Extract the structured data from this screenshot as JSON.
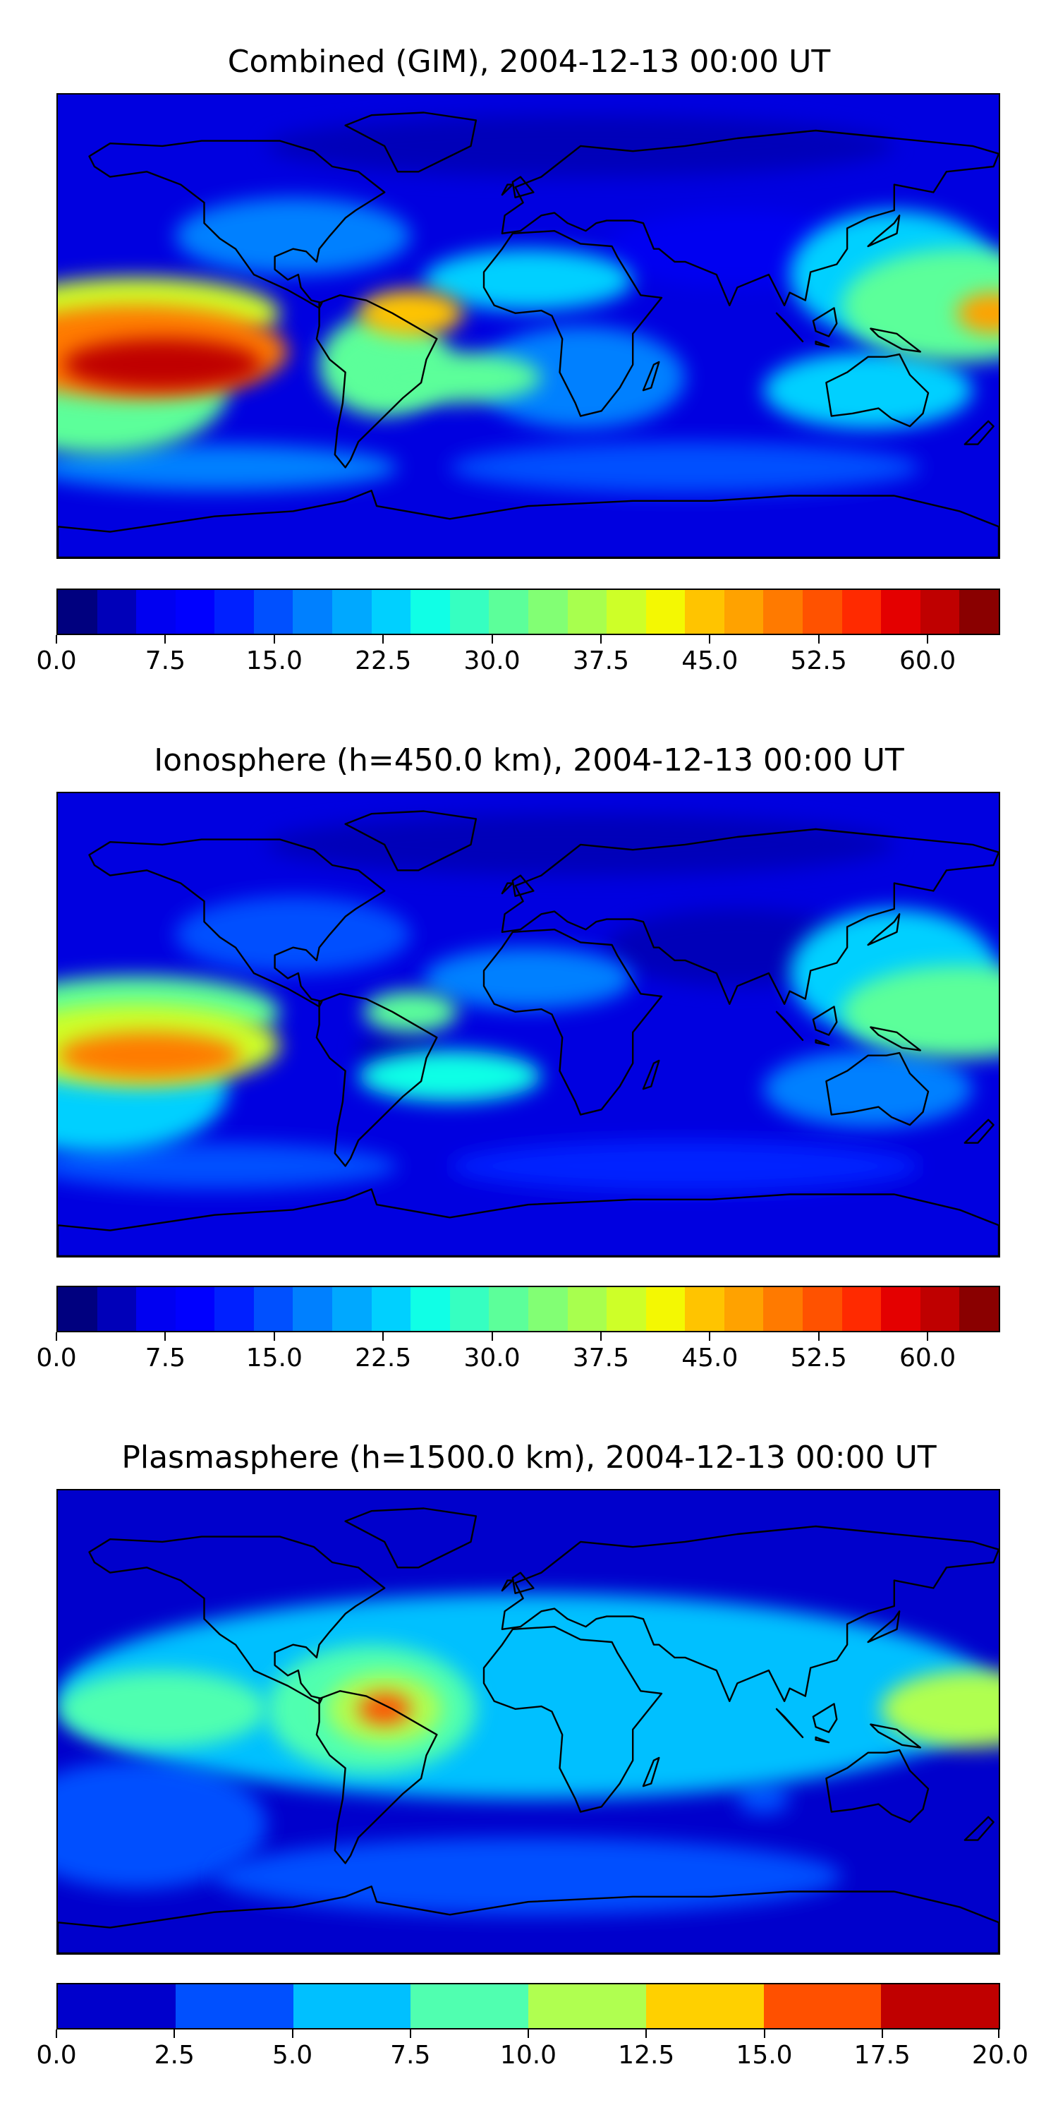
{
  "chart_data": [
    {
      "type": "heatmap",
      "title": "Combined (GIM), 2004-12-13 00:00 UT",
      "colorbar": {
        "range": [
          0,
          65
        ],
        "tick_labels": [
          "0.0",
          "7.5",
          "15.0",
          "22.5",
          "30.0",
          "37.5",
          "45.0",
          "52.5",
          "60.0"
        ],
        "tick_values": [
          0,
          7.5,
          15,
          22.5,
          30,
          37.5,
          45,
          52.5,
          60
        ],
        "colors": [
          "#00007f",
          "#0000b9",
          "#0000f1",
          "#0000ff",
          "#0020ff",
          "#0050ff",
          "#0080ff",
          "#00a8ff",
          "#00d0ff",
          "#10ffe6",
          "#36ffc1",
          "#5cff9a",
          "#82ff74",
          "#a8ff4e",
          "#ceff28",
          "#f4f802",
          "#ffc400",
          "#ffa200",
          "#ff7a00",
          "#ff5200",
          "#ff2a00",
          "#e40000",
          "#bf0000",
          "#8a0000"
        ]
      },
      "background_color": "#0000e0",
      "blobs": [
        {
          "lon": -140,
          "lat": -15,
          "value": 62,
          "rx": 38,
          "ry": 10
        },
        {
          "lon": -150,
          "lat": -10,
          "value": 50,
          "rx": 58,
          "ry": 18
        },
        {
          "lon": -150,
          "lat": 5,
          "value": 40,
          "rx": 55,
          "ry": 14
        },
        {
          "lon": -165,
          "lat": -25,
          "value": 30,
          "rx": 50,
          "ry": 25
        },
        {
          "lon": 178,
          "lat": 5,
          "value": 47,
          "rx": 14,
          "ry": 8
        },
        {
          "lon": 165,
          "lat": 8,
          "value": 32,
          "rx": 45,
          "ry": 22
        },
        {
          "lon": 140,
          "lat": 20,
          "value": 24,
          "rx": 40,
          "ry": 25
        },
        {
          "lon": 130,
          "lat": -25,
          "value": 22,
          "rx": 40,
          "ry": 15
        },
        {
          "lon": -45,
          "lat": 5,
          "value": 44,
          "rx": 20,
          "ry": 9
        },
        {
          "lon": -55,
          "lat": -15,
          "value": 30,
          "rx": 25,
          "ry": 20
        },
        {
          "lon": -30,
          "lat": -20,
          "value": 32,
          "rx": 35,
          "ry": 10
        },
        {
          "lon": 0,
          "lat": 18,
          "value": 22,
          "rx": 40,
          "ry": 12
        },
        {
          "lon": 20,
          "lat": -20,
          "value": 18,
          "rx": 40,
          "ry": 20
        },
        {
          "lon": -90,
          "lat": 35,
          "value": 17,
          "rx": 45,
          "ry": 15
        },
        {
          "lon": 60,
          "lat": -55,
          "value": 16,
          "rx": 90,
          "ry": 10
        },
        {
          "lon": -120,
          "lat": -55,
          "value": 18,
          "rx": 70,
          "ry": 9
        },
        {
          "lon": 80,
          "lat": 30,
          "value": 6,
          "rx": 50,
          "ry": 15
        },
        {
          "lon": 20,
          "lat": 70,
          "value": 4,
          "rx": 120,
          "ry": 12
        }
      ]
    },
    {
      "type": "heatmap",
      "title": "Ionosphere  (h=450.0 km), 2004-12-13 00:00 UT",
      "colorbar": {
        "range": [
          0,
          65
        ],
        "tick_labels": [
          "0.0",
          "7.5",
          "15.0",
          "22.5",
          "30.0",
          "37.5",
          "45.0",
          "52.5",
          "60.0"
        ],
        "tick_values": [
          0,
          7.5,
          15,
          22.5,
          30,
          37.5,
          45,
          52.5,
          60
        ],
        "colors": [
          "#00007f",
          "#0000b9",
          "#0000f1",
          "#0000ff",
          "#0020ff",
          "#0050ff",
          "#0080ff",
          "#00a8ff",
          "#00d0ff",
          "#10ffe6",
          "#36ffc1",
          "#5cff9a",
          "#82ff74",
          "#a8ff4e",
          "#ceff28",
          "#f4f802",
          "#ffc400",
          "#ffa200",
          "#ff7a00",
          "#ff5200",
          "#ff2a00",
          "#e40000",
          "#bf0000",
          "#8a0000"
        ]
      },
      "background_color": "#0000e0",
      "blobs": [
        {
          "lon": -145,
          "lat": -12,
          "value": 50,
          "rx": 35,
          "ry": 9
        },
        {
          "lon": -150,
          "lat": -8,
          "value": 40,
          "rx": 55,
          "ry": 16
        },
        {
          "lon": -150,
          "lat": 5,
          "value": 32,
          "rx": 55,
          "ry": 14
        },
        {
          "lon": -165,
          "lat": -25,
          "value": 24,
          "rx": 50,
          "ry": 25
        },
        {
          "lon": 165,
          "lat": 5,
          "value": 32,
          "rx": 45,
          "ry": 18
        },
        {
          "lon": 140,
          "lat": 20,
          "value": 22,
          "rx": 40,
          "ry": 25
        },
        {
          "lon": 130,
          "lat": -25,
          "value": 18,
          "rx": 40,
          "ry": 15
        },
        {
          "lon": -45,
          "lat": 5,
          "value": 30,
          "rx": 18,
          "ry": 8
        },
        {
          "lon": -30,
          "lat": -20,
          "value": 25,
          "rx": 35,
          "ry": 10
        },
        {
          "lon": 0,
          "lat": 18,
          "value": 18,
          "rx": 40,
          "ry": 12
        },
        {
          "lon": -90,
          "lat": 35,
          "value": 14,
          "rx": 45,
          "ry": 15
        },
        {
          "lon": 60,
          "lat": -55,
          "value": 13,
          "rx": 90,
          "ry": 10
        },
        {
          "lon": -120,
          "lat": -55,
          "value": 15,
          "rx": 70,
          "ry": 9
        },
        {
          "lon": 80,
          "lat": 30,
          "value": 4,
          "rx": 50,
          "ry": 15
        },
        {
          "lon": -50,
          "lat": -10,
          "value": 4,
          "rx": 15,
          "ry": 8
        },
        {
          "lon": 20,
          "lat": 70,
          "value": 3,
          "rx": 120,
          "ry": 12
        }
      ]
    },
    {
      "type": "heatmap",
      "title": "Plasmasphere (h=1500.0 km), 2004-12-13 00:00 UT",
      "colorbar": {
        "range": [
          0,
          20
        ],
        "tick_labels": [
          "0.0",
          "2.5",
          "5.0",
          "7.5",
          "10.0",
          "12.5",
          "15.0",
          "17.5",
          "20.0"
        ],
        "tick_values": [
          0,
          2.5,
          5,
          7.5,
          10,
          12.5,
          15,
          17.5,
          20
        ],
        "colors": [
          "#0000cc",
          "#0050ff",
          "#00c0ff",
          "#50ffb0",
          "#b0ff50",
          "#ffd000",
          "#ff5000",
          "#c00000"
        ]
      },
      "background_color": "#0000cc",
      "blobs": [
        {
          "lon": 0,
          "lat": 10,
          "value": 7,
          "rx": 180,
          "ry": 40
        },
        {
          "lon": -60,
          "lat": 5,
          "value": 9,
          "rx": 40,
          "ry": 25
        },
        {
          "lon": -55,
          "lat": 5,
          "value": 12,
          "rx": 22,
          "ry": 14
        },
        {
          "lon": -55,
          "lat": 5,
          "value": 16,
          "rx": 10,
          "ry": 6
        },
        {
          "lon": -140,
          "lat": 5,
          "value": 9,
          "rx": 40,
          "ry": 15
        },
        {
          "lon": 170,
          "lat": 5,
          "value": 10,
          "rx": 35,
          "ry": 15
        },
        {
          "lon": 0,
          "lat": -5,
          "value": 3,
          "rx": 5,
          "ry": 15
        },
        {
          "lon": -150,
          "lat": -40,
          "value": 3,
          "rx": 50,
          "ry": 25
        },
        {
          "lon": 90,
          "lat": -30,
          "value": 3,
          "rx": 10,
          "ry": 6
        },
        {
          "lon": 0,
          "lat": -60,
          "value": 3,
          "rx": 120,
          "ry": 15
        }
      ]
    }
  ]
}
